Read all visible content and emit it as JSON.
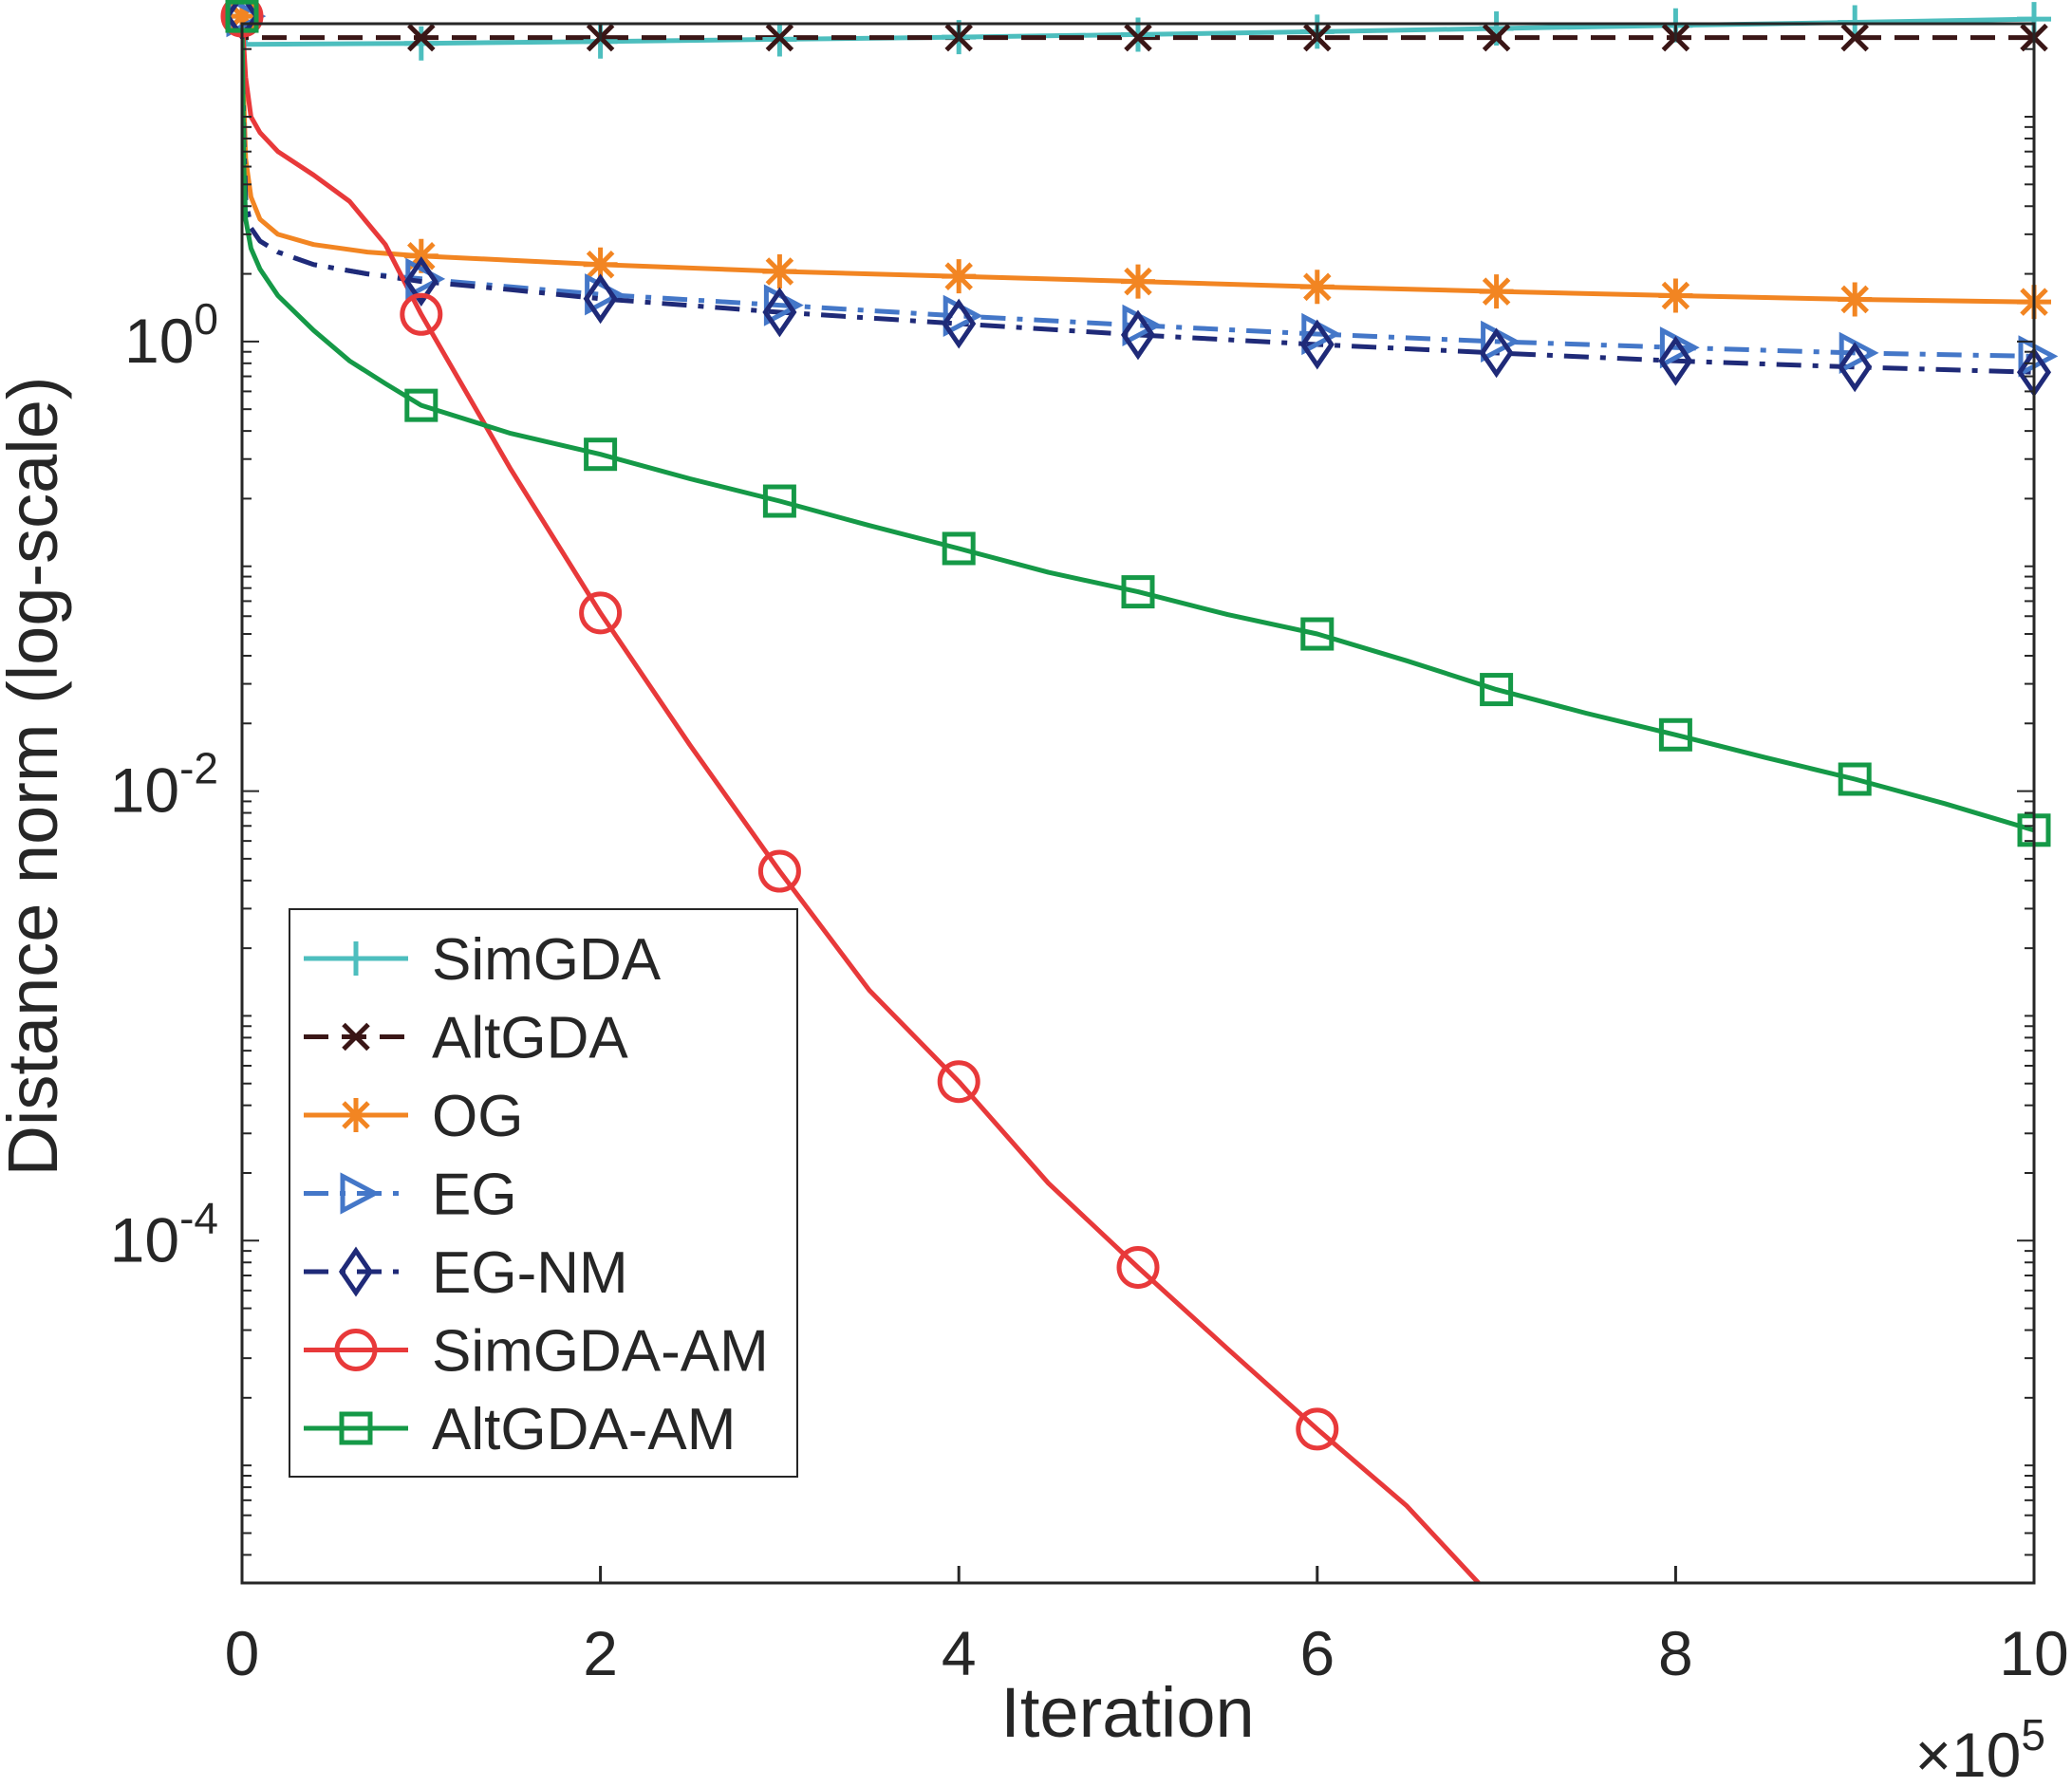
{
  "chart_data": {
    "type": "line",
    "title": "",
    "xlabel": "Iteration",
    "ylabel": "Distance norm (log-scale)",
    "x_multiplier": {
      "base": "×10",
      "exp": "5"
    },
    "xlim": [
      0,
      10
    ],
    "ylim": [
      3e-06,
      30
    ],
    "yscale": "log",
    "grid": false,
    "legend_position": "bottom-left",
    "x_ticks": [
      {
        "value": 0,
        "label": "0"
      },
      {
        "value": 2,
        "label": "2"
      },
      {
        "value": 4,
        "label": "4"
      },
      {
        "value": 6,
        "label": "6"
      },
      {
        "value": 8,
        "label": "8"
      },
      {
        "value": 10,
        "label": "10"
      }
    ],
    "y_ticks": [
      {
        "value": 1,
        "base": "10",
        "exp": "0"
      },
      {
        "value": 0.01,
        "base": "10",
        "exp": "-2"
      },
      {
        "value": 0.0001,
        "base": "10",
        "exp": "-4"
      }
    ],
    "series": [
      {
        "name": "SimGDA",
        "color": "#4DBEBE",
        "dash": "solid",
        "marker": "plus",
        "x": [
          0,
          0.02,
          1,
          2,
          3,
          4,
          5,
          6,
          7,
          8,
          9,
          10
        ],
        "y": [
          28,
          21,
          21.2,
          21.6,
          22.1,
          22.6,
          23.2,
          23.9,
          24.7,
          25.5,
          26.3,
          27.2
        ],
        "marker_x": [
          0,
          1,
          2,
          3,
          4,
          5,
          6,
          7,
          8,
          9,
          10
        ]
      },
      {
        "name": "AltGDA",
        "color": "#3A1616",
        "dash": "dashed",
        "marker": "x",
        "x": [
          0,
          0.02,
          10
        ],
        "y": [
          28,
          22.5,
          22.5
        ],
        "marker_x": [
          0,
          1,
          2,
          3,
          4,
          5,
          6,
          7,
          8,
          9,
          10
        ]
      },
      {
        "name": "OG",
        "color": "#F28522",
        "dash": "solid",
        "marker": "asterisk",
        "x": [
          0,
          0.01,
          0.02,
          0.05,
          0.1,
          0.2,
          0.4,
          0.7,
          1,
          1.5,
          2,
          3,
          4,
          5,
          6,
          7,
          8,
          9,
          10
        ],
        "y": [
          28,
          12,
          6.5,
          4.4,
          3.5,
          3.0,
          2.7,
          2.5,
          2.4,
          2.3,
          2.2,
          2.05,
          1.95,
          1.85,
          1.75,
          1.67,
          1.6,
          1.54,
          1.5
        ],
        "marker_x": [
          0,
          1,
          2,
          3,
          4,
          5,
          6,
          7,
          8,
          9,
          10
        ]
      },
      {
        "name": "EG",
        "color": "#4477C8",
        "dash": "dashdot",
        "marker": "triangle-right",
        "x": [
          0,
          0.01,
          0.02,
          0.05,
          0.1,
          0.2,
          0.4,
          0.7,
          1,
          1.5,
          2,
          3,
          4,
          5,
          6,
          7,
          8,
          9,
          10
        ],
        "y": [
          28,
          8,
          4.3,
          3.2,
          2.8,
          2.5,
          2.2,
          2.0,
          1.9,
          1.75,
          1.62,
          1.45,
          1.3,
          1.18,
          1.08,
          1.0,
          0.94,
          0.89,
          0.86
        ],
        "marker_x": [
          0,
          1,
          2,
          3,
          4,
          5,
          6,
          7,
          8,
          9,
          10
        ]
      },
      {
        "name": "EG-NM",
        "color": "#1F2A78",
        "dash": "dashdot",
        "marker": "diamond",
        "x": [
          0,
          0.01,
          0.02,
          0.05,
          0.1,
          0.2,
          0.4,
          0.7,
          1,
          1.5,
          2,
          3,
          4,
          5,
          6,
          7,
          8,
          9,
          10
        ],
        "y": [
          28,
          8,
          4.3,
          3.2,
          2.8,
          2.5,
          2.2,
          2.0,
          1.85,
          1.7,
          1.55,
          1.35,
          1.2,
          1.07,
          0.97,
          0.89,
          0.82,
          0.77,
          0.73
        ],
        "marker_x": [
          0,
          1,
          2,
          3,
          4,
          5,
          6,
          7,
          8,
          9,
          10
        ]
      },
      {
        "name": "SimGDA-AM",
        "color": "#E8393A",
        "dash": "solid",
        "marker": "circle",
        "x": [
          0,
          0.02,
          0.05,
          0.1,
          0.2,
          0.4,
          0.6,
          0.8,
          1,
          1.5,
          2,
          2.5,
          3,
          3.5,
          4,
          4.5,
          5,
          5.5,
          6,
          6.5,
          6.9
        ],
        "y": [
          28,
          15,
          10,
          8.5,
          7.0,
          5.5,
          4.2,
          2.7,
          1.32,
          0.27,
          0.062,
          0.016,
          0.0044,
          0.0013,
          0.00051,
          0.00018,
          7.6e-05,
          3.3e-05,
          1.45e-05,
          6.6e-06,
          3e-06
        ],
        "marker_x": [
          0,
          1,
          2,
          3,
          4,
          5,
          6
        ]
      },
      {
        "name": "AltGDA-AM",
        "color": "#159947",
        "dash": "solid",
        "marker": "square",
        "x": [
          0,
          0.01,
          0.02,
          0.05,
          0.1,
          0.2,
          0.4,
          0.6,
          0.8,
          1,
          1.5,
          2,
          2.5,
          3,
          3.5,
          4,
          4.5,
          5,
          5.5,
          6,
          6.5,
          7,
          7.5,
          8,
          8.5,
          9,
          9.5,
          10
        ],
        "y": [
          28,
          6.0,
          3.5,
          2.6,
          2.1,
          1.6,
          1.12,
          0.82,
          0.65,
          0.52,
          0.39,
          0.315,
          0.245,
          0.195,
          0.152,
          0.12,
          0.094,
          0.077,
          0.061,
          0.05,
          0.038,
          0.0283,
          0.0222,
          0.0178,
          0.0141,
          0.0113,
          0.0088,
          0.0067
        ],
        "marker_x": [
          0,
          1,
          2,
          3,
          4,
          5,
          6,
          7,
          8,
          9,
          10
        ]
      }
    ]
  }
}
